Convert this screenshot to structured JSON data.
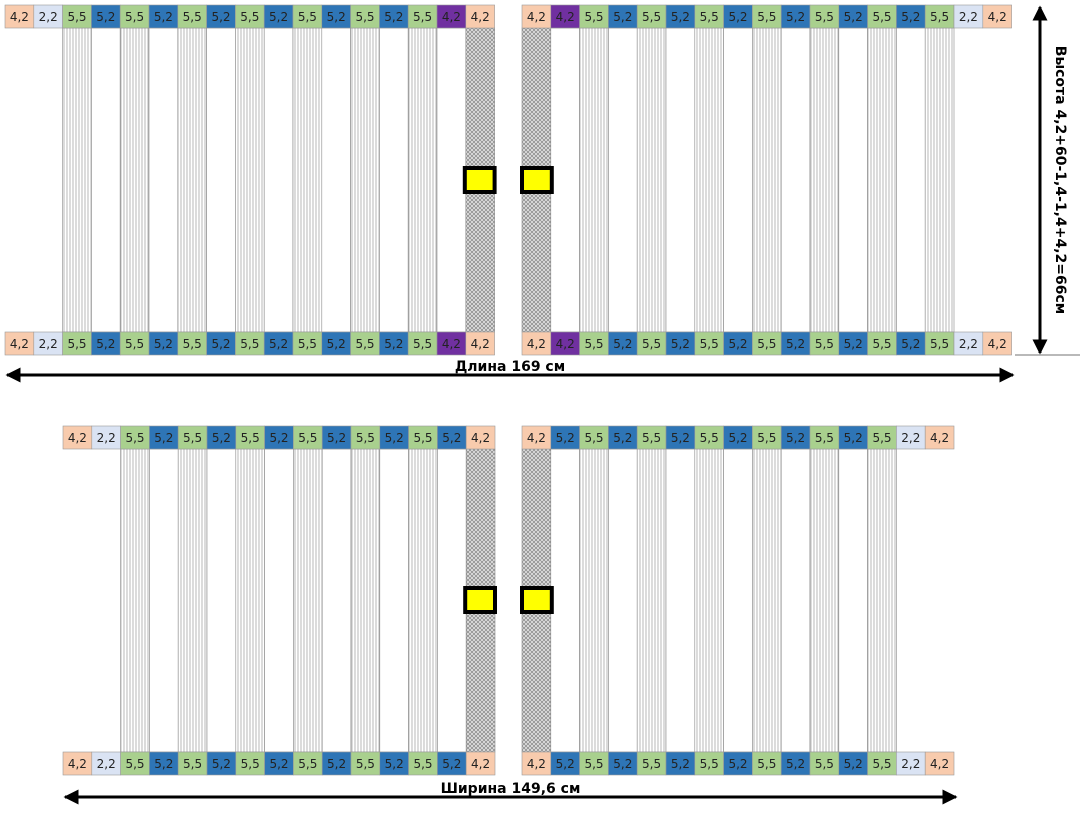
{
  "panels": [
    {
      "left": {
        "top": [
          "4,2",
          "2,2",
          "5,5",
          "5,2",
          "5,5",
          "5,2",
          "5,5",
          "5,2",
          "5,5",
          "5,2",
          "5,5",
          "5,2",
          "5,5",
          "5,2",
          "5,5",
          "4,2",
          "4,2"
        ],
        "bottom": [
          "4,2",
          "2,2",
          "5,5",
          "5,2",
          "5,5",
          "5,2",
          "5,5",
          "5,2",
          "5,5",
          "5,2",
          "5,5",
          "5,2",
          "5,5",
          "5,2",
          "5,5",
          "4,2",
          "4,2"
        ],
        "fills": [
          "#f8cbad",
          "#dae3f3",
          "#a9d08e",
          "#2e75b6",
          "#a9d08e",
          "#2e75b6",
          "#a9d08e",
          "#2e75b6",
          "#a9d08e",
          "#2e75b6",
          "#a9d08e",
          "#2e75b6",
          "#a9d08e",
          "#2e75b6",
          "#a9d08e",
          "#7030a0",
          "#f8cbad"
        ],
        "columns": [
          "none",
          "none",
          "hatch",
          "plain",
          "hatch",
          "plain",
          "hatch",
          "plain",
          "hatch",
          "plain",
          "hatch",
          "plain",
          "hatch",
          "plain",
          "hatch",
          "plain",
          "cross"
        ]
      },
      "right": {
        "top": [
          "4,2",
          "4,2",
          "5,5",
          "5,2",
          "5,5",
          "5,2",
          "5,5",
          "5,2",
          "5,5",
          "5,2",
          "5,5",
          "5,2",
          "5,5",
          "5,2",
          "5,5",
          "2,2",
          "4,2"
        ],
        "bottom": [
          "4,2",
          "4,2",
          "5,5",
          "5,2",
          "5,5",
          "5,2",
          "5,5",
          "5,2",
          "5,5",
          "5,2",
          "5,5",
          "5,2",
          "5,5",
          "5,2",
          "5,5",
          "2,2",
          "4,2"
        ],
        "fills": [
          "#f8cbad",
          "#7030a0",
          "#a9d08e",
          "#2e75b6",
          "#a9d08e",
          "#2e75b6",
          "#a9d08e",
          "#2e75b6",
          "#a9d08e",
          "#2e75b6",
          "#a9d08e",
          "#2e75b6",
          "#a9d08e",
          "#2e75b6",
          "#a9d08e",
          "#dae3f3",
          "#f8cbad"
        ],
        "columns": [
          "cross",
          "plain",
          "hatch",
          "plain",
          "hatch",
          "plain",
          "hatch",
          "plain",
          "hatch",
          "plain",
          "hatch",
          "plain",
          "hatch",
          "plain",
          "hatch",
          "none",
          "none"
        ]
      },
      "width_label": "Длина 169 см",
      "height_label": "Высота 4,2+60-1,4-1,4+4,2=66см"
    },
    {
      "left": {
        "top": [
          "4,2",
          "2,2",
          "5,5",
          "5,2",
          "5,5",
          "5,2",
          "5,5",
          "5,2",
          "5,5",
          "5,2",
          "5,5",
          "5,2",
          "5,5",
          "5,2",
          "4,2"
        ],
        "bottom": [
          "4,2",
          "2,2",
          "5,5",
          "5,2",
          "5,5",
          "5,2",
          "5,5",
          "5,2",
          "5,5",
          "5,2",
          "5,5",
          "5,2",
          "5,5",
          "5,2",
          "4,2"
        ],
        "fills": [
          "#f8cbad",
          "#dae3f3",
          "#a9d08e",
          "#2e75b6",
          "#a9d08e",
          "#2e75b6",
          "#a9d08e",
          "#2e75b6",
          "#a9d08e",
          "#2e75b6",
          "#a9d08e",
          "#2e75b6",
          "#a9d08e",
          "#2e75b6",
          "#f8cbad"
        ],
        "columns": [
          "none",
          "none",
          "hatch",
          "plain",
          "hatch",
          "plain",
          "hatch",
          "plain",
          "hatch",
          "plain",
          "hatch",
          "plain",
          "hatch",
          "plain",
          "cross"
        ]
      },
      "right": {
        "top": [
          "4,2",
          "5,2",
          "5,5",
          "5,2",
          "5,5",
          "5,2",
          "5,5",
          "5,2",
          "5,5",
          "5,2",
          "5,5",
          "5,2",
          "5,5",
          "2,2",
          "4,2"
        ],
        "bottom": [
          "4,2",
          "5,2",
          "5,5",
          "5,2",
          "5,5",
          "5,2",
          "5,5",
          "5,2",
          "5,5",
          "5,2",
          "5,5",
          "5,2",
          "5,5",
          "2,2",
          "4,2"
        ],
        "fills": [
          "#f8cbad",
          "#2e75b6",
          "#a9d08e",
          "#2e75b6",
          "#a9d08e",
          "#2e75b6",
          "#a9d08e",
          "#2e75b6",
          "#a9d08e",
          "#2e75b6",
          "#a9d08e",
          "#2e75b6",
          "#a9d08e",
          "#dae3f3",
          "#f8cbad"
        ],
        "columns": [
          "cross",
          "plain",
          "hatch",
          "plain",
          "hatch",
          "plain",
          "hatch",
          "plain",
          "hatch",
          "plain",
          "hatch",
          "plain",
          "hatch",
          "none",
          "none"
        ]
      },
      "width_label": "Ширина 149,6 см"
    }
  ]
}
